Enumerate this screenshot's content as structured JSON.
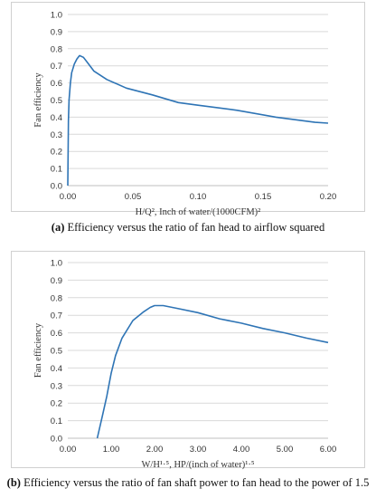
{
  "chart_data": [
    {
      "type": "line",
      "caption": {
        "letter": "(a)",
        "text": "Efficiency versus the ratio of fan head to airflow squared"
      },
      "xlabel": "H/Q², Inch of water/(1000CFM)²",
      "ylabel": "Fan efficiency",
      "xlim": [
        0,
        0.2
      ],
      "ylim": [
        0,
        1
      ],
      "xticks": [
        "0.00",
        "0.05",
        "0.10",
        "0.15",
        "0.20"
      ],
      "yticks": [
        "0.0",
        "0.1",
        "0.2",
        "0.3",
        "0.4",
        "0.5",
        "0.6",
        "0.7",
        "0.8",
        "0.9",
        "1.0"
      ],
      "grid": "horizontal",
      "line_color": "#2e74b5",
      "series": [
        {
          "x": [
            0.0,
            0.0005,
            0.001,
            0.002,
            0.003,
            0.005,
            0.007,
            0.009,
            0.012,
            0.015,
            0.02,
            0.03,
            0.045,
            0.065,
            0.085,
            0.1,
            0.13,
            0.16,
            0.19,
            0.2
          ],
          "y": [
            0.0,
            0.38,
            0.5,
            0.6,
            0.66,
            0.71,
            0.74,
            0.76,
            0.75,
            0.72,
            0.67,
            0.62,
            0.57,
            0.53,
            0.485,
            0.47,
            0.44,
            0.4,
            0.37,
            0.365
          ]
        }
      ]
    },
    {
      "type": "line",
      "caption": {
        "letter": "(b)",
        "text": "Efficiency versus the ratio of fan shaft power to fan head to the power of 1.5"
      },
      "xlabel": "W/H¹·⁵, HP/(inch of water)¹·⁵",
      "ylabel": "Fan efficiency",
      "xlim": [
        0,
        6
      ],
      "ylim": [
        0,
        1
      ],
      "xticks": [
        "0.00",
        "1.00",
        "2.00",
        "3.00",
        "4.00",
        "5.00",
        "6.00"
      ],
      "yticks": [
        "0.0",
        "0.1",
        "0.2",
        "0.3",
        "0.4",
        "0.5",
        "0.6",
        "0.7",
        "0.8",
        "0.9",
        "1.0"
      ],
      "grid": "horizontal",
      "line_color": "#2e74b5",
      "series": [
        {
          "x": [
            0.68,
            0.8,
            0.9,
            1.0,
            1.1,
            1.25,
            1.5,
            1.75,
            1.9,
            2.0,
            2.2,
            2.5,
            3.0,
            3.5,
            4.0,
            4.5,
            5.0,
            5.5,
            6.0
          ],
          "y": [
            0.0,
            0.13,
            0.24,
            0.37,
            0.47,
            0.57,
            0.67,
            0.72,
            0.745,
            0.755,
            0.755,
            0.74,
            0.715,
            0.68,
            0.655,
            0.625,
            0.6,
            0.57,
            0.545
          ]
        }
      ]
    }
  ]
}
